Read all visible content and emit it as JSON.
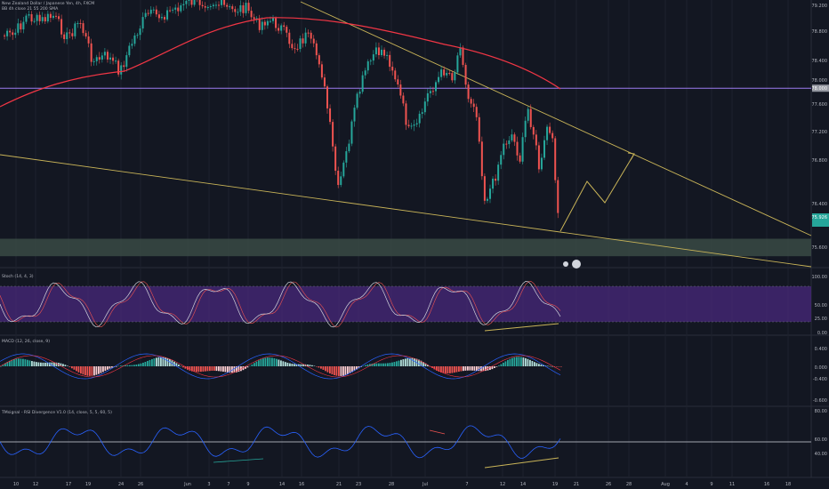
{
  "symbol_title": "New Zealand Dollar / Japanese Yen, 4h, FXCM",
  "main_indicator": "BB 4h close 21 55 200 SMA",
  "price_badge_mid": "78.000",
  "price_badge_last": "75.926",
  "indicators": {
    "stoch": {
      "title": "Stoch (14, 4, 3)",
      "ticks": [
        "100.00",
        "50.00",
        "25.00",
        "0.00"
      ]
    },
    "macd": {
      "title": "MACD (12, 26, close, 9)",
      "ticks": [
        "0.400",
        "0.000",
        "-0.400",
        "-0.600"
      ]
    },
    "rsi": {
      "title": "TMsignal - RSI Divergence V1.0 (14, close, 5, 5, 60, 5)",
      "ticks": [
        "80.00",
        "60.00",
        "40.00"
      ]
    }
  },
  "chart_data": {
    "type": "candlestick",
    "price_ticks": [
      "79.200",
      "78.800",
      "78.400",
      "78.000",
      "77.600",
      "77.200",
      "76.800",
      "76.400",
      "76.000",
      "75.600"
    ],
    "date_ticks": [
      "10",
      "12",
      "17",
      "19",
      "24",
      "26",
      "Jun",
      "3",
      "7",
      "9",
      "14",
      "16",
      "21",
      "23",
      "28",
      "Jul",
      "7",
      "12",
      "14",
      "19",
      "21",
      "26",
      "28",
      "Aug",
      "4",
      "9",
      "11",
      "16",
      "18"
    ],
    "horizontal_line_price": 78.0,
    "support_zone": [
      75.6,
      75.85
    ],
    "colors": {
      "up": "#26a69a",
      "down": "#ef5350",
      "sma": "#f23645",
      "trendline": "#c9b458",
      "hline": "#9c7cf0",
      "support": "#3a4a44",
      "stoch_band": "#4b2a82",
      "rsi_line": "#2962ff"
    }
  }
}
